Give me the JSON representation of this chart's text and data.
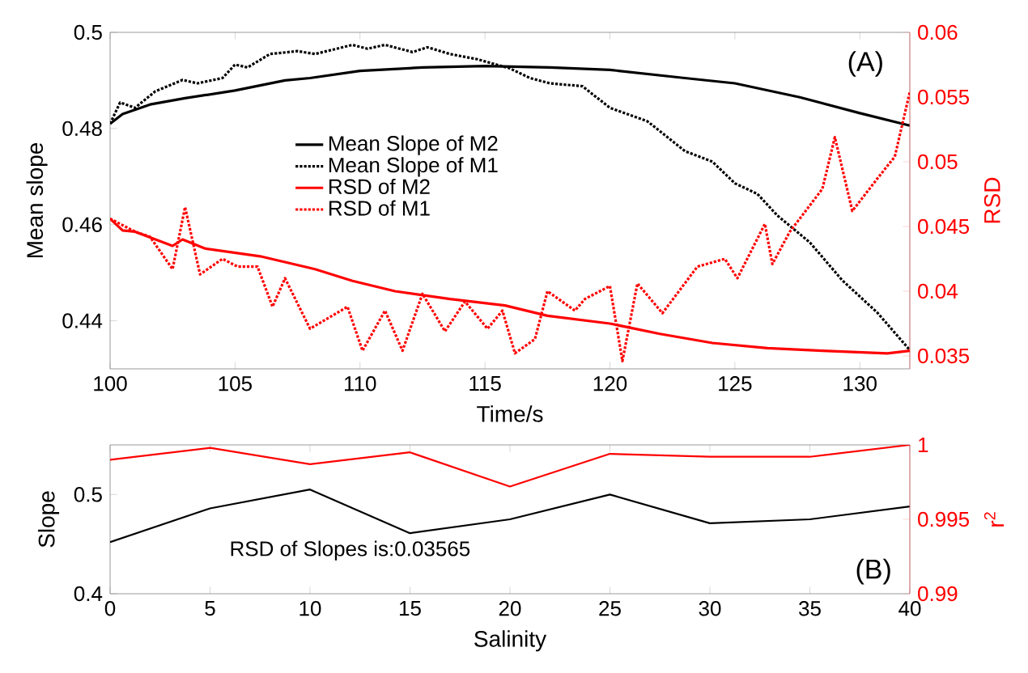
{
  "chart_data": [
    {
      "type": "line",
      "xlabel": "Time/s",
      "ylabel": "Mean slope",
      "y2label": "RSD",
      "xlim": [
        100,
        132
      ],
      "xticks": [
        100,
        105,
        110,
        115,
        120,
        125,
        130
      ],
      "ylim": [
        0.43,
        0.5
      ],
      "yticks": [
        0.44,
        0.46,
        0.48,
        0.5
      ],
      "y2lim": [
        0.034,
        0.06
      ],
      "y2ticks": [
        0.035,
        0.04,
        0.045,
        0.05,
        0.055,
        0.06
      ],
      "legend": "center",
      "annotations": [
        "(A)"
      ],
      "series": [
        {
          "name": "Mean Slope of M2",
          "color": "#000000",
          "line_style": "solid",
          "x": [
            100,
            100.5,
            101.6,
            103,
            105,
            107,
            108,
            110,
            112.5,
            115,
            117.6,
            120,
            123,
            125,
            127.6,
            130,
            132
          ],
          "values": [
            0.481,
            0.483,
            0.485,
            0.4863,
            0.4879,
            0.49,
            0.4905,
            0.492,
            0.4927,
            0.493,
            0.4927,
            0.4922,
            0.4905,
            0.4894,
            0.4865,
            0.4832,
            0.4806
          ]
        },
        {
          "name": "Mean Slope of M1",
          "color": "#000000",
          "line_style": "dotted",
          "x": [
            100,
            100.4,
            101,
            101.8,
            102.9,
            103.5,
            104.5,
            105,
            105.5,
            106.4,
            107.5,
            108.2,
            109.7,
            110.3,
            111,
            112.1,
            112.7,
            113.6,
            114.7,
            116,
            116.8,
            117.6,
            118.9,
            120,
            121.5,
            123,
            124.1,
            125,
            125.9,
            126.7,
            128,
            129.3,
            130.7,
            132
          ],
          "values": [
            0.481,
            0.4854,
            0.4843,
            0.4877,
            0.4901,
            0.4894,
            0.4905,
            0.4933,
            0.4927,
            0.4955,
            0.4961,
            0.4955,
            0.4974,
            0.4966,
            0.4974,
            0.4959,
            0.4969,
            0.4955,
            0.4944,
            0.4925,
            0.4905,
            0.4894,
            0.4888,
            0.4843,
            0.4815,
            0.4753,
            0.4731,
            0.4686,
            0.4664,
            0.4619,
            0.4563,
            0.4484,
            0.4417,
            0.4339
          ]
        },
        {
          "name": "RSD of M2",
          "color": "#ff0000",
          "line_style": "solid",
          "axis": "y2",
          "x": [
            100,
            100.5,
            101,
            102.5,
            102.9,
            103.8,
            106,
            108.2,
            109.7,
            111.4,
            113.6,
            115.8,
            117.5,
            120,
            122,
            124.1,
            126.3,
            128.5,
            131.1,
            132
          ],
          "values": [
            0.0456,
            0.0447,
            0.0446,
            0.0435,
            0.044,
            0.0433,
            0.0427,
            0.0417,
            0.0408,
            0.04,
            0.0394,
            0.0389,
            0.0381,
            0.0375,
            0.0367,
            0.036,
            0.0356,
            0.0354,
            0.0352,
            0.0354
          ]
        },
        {
          "name": "RSD of M1",
          "color": "#ff0000",
          "line_style": "dotted",
          "axis": "y2",
          "x": [
            100,
            101,
            101.6,
            102.5,
            103,
            103.6,
            104.5,
            105.1,
            105.9,
            106.5,
            107,
            108,
            109.5,
            110.1,
            111,
            111.7,
            112.5,
            113.4,
            114.2,
            115.1,
            115.7,
            116.2,
            117,
            117.5,
            118.6,
            119,
            120,
            120.5,
            121.1,
            122.1,
            123.5,
            124.6,
            125.1,
            126.2,
            126.5,
            127.2,
            128.5,
            129,
            129.7,
            130.7,
            131.4,
            132
          ],
          "values": [
            0.0456,
            0.0446,
            0.0442,
            0.0417,
            0.0465,
            0.0413,
            0.0425,
            0.0419,
            0.0419,
            0.0388,
            0.041,
            0.0371,
            0.0388,
            0.0354,
            0.0385,
            0.0354,
            0.0398,
            0.0369,
            0.0392,
            0.0371,
            0.0385,
            0.0352,
            0.0363,
            0.04,
            0.0385,
            0.0394,
            0.0404,
            0.0346,
            0.0406,
            0.0383,
            0.0419,
            0.0425,
            0.041,
            0.0452,
            0.0421,
            0.0446,
            0.0479,
            0.0519,
            0.0462,
            0.0487,
            0.0504,
            0.0554
          ]
        }
      ]
    },
    {
      "type": "line",
      "xlabel": "Salinity",
      "ylabel": "Slope",
      "y2label": "r$^{2}$",
      "xlim": [
        0,
        40
      ],
      "xticks": [
        0,
        5,
        10,
        15,
        20,
        25,
        30,
        35,
        40
      ],
      "ylim": [
        0.4,
        0.55
      ],
      "yticks": [
        0.4,
        0.5
      ],
      "y2lim": [
        0.99,
        1
      ],
      "y2ticks": [
        0.99,
        0.995,
        1
      ],
      "annotations": [
        "RSD of Slopes is:0.03565",
        "(B)"
      ],
      "series": [
        {
          "color": "#000000",
          "x": [
            0,
            5,
            10,
            15,
            20,
            25,
            30,
            35,
            40
          ],
          "values": [
            0.452,
            0.486,
            0.505,
            0.461,
            0.475,
            0.5,
            0.471,
            0.475,
            0.488
          ]
        },
        {
          "color": "#ff0000",
          "axis": "y2",
          "x": [
            0,
            5,
            10,
            15,
            20,
            25,
            30,
            35,
            40
          ],
          "values": [
            0.999,
            0.9998,
            0.9987,
            0.9995,
            0.9972,
            0.9994,
            0.9992,
            0.9992,
            1.0
          ]
        }
      ]
    }
  ]
}
